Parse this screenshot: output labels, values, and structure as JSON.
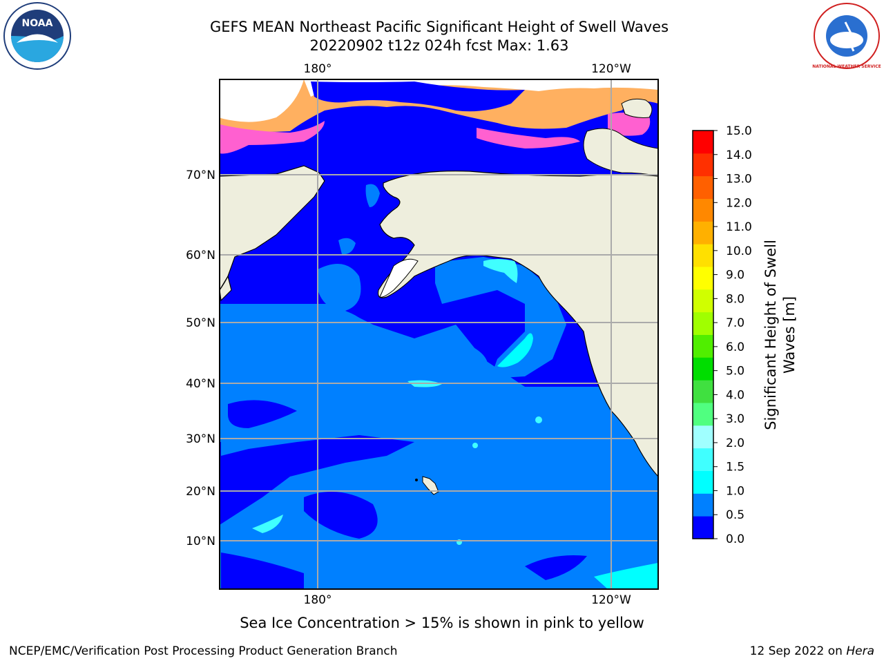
{
  "title_line1": "GEFS MEAN Northeast Pacific Significant Height of Swell Waves",
  "title_line2": "20220902 t12z 024h fcst   Max: 1.63",
  "map": {
    "lon_labels": [
      "180°",
      "120°W"
    ],
    "lat_labels": [
      "70°N",
      "60°N",
      "50°N",
      "40°N",
      "30°N",
      "20°N",
      "10°N"
    ]
  },
  "colorbar": {
    "label_line1": "Significant Height of Swell",
    "label_line2": "Waves [m]",
    "ticks": [
      "15.0",
      "14.0",
      "13.0",
      "12.0",
      "11.0",
      "10.0",
      "9.0",
      "8.0",
      "7.0",
      "6.0",
      "5.0",
      "4.0",
      "3.0",
      "2.0",
      "1.5",
      "1.0",
      "0.5",
      "0.0"
    ],
    "colors": [
      "#0000ff",
      "#0080ff",
      "#00ffff",
      "#40ffff",
      "#a0ffff",
      "#50ff80",
      "#40e040",
      "#00dd00",
      "#50ee00",
      "#a0ff00",
      "#d0ff00",
      "#ffff00",
      "#ffe000",
      "#ffb000",
      "#ff8800",
      "#ff6000",
      "#ff3000",
      "#ff0000"
    ]
  },
  "logos": {
    "noaa_text": "NOAA",
    "nws_text": "NATIONAL WEATHER SERVICE"
  },
  "note": "Sea Ice Concentration > 15% is shown in pink to yellow",
  "footer_left": "NCEP/EMC/Verification Post Processing Product Generation Branch",
  "footer_right_date": "12 Sep 2022 on",
  "footer_right_host": "Hera"
}
